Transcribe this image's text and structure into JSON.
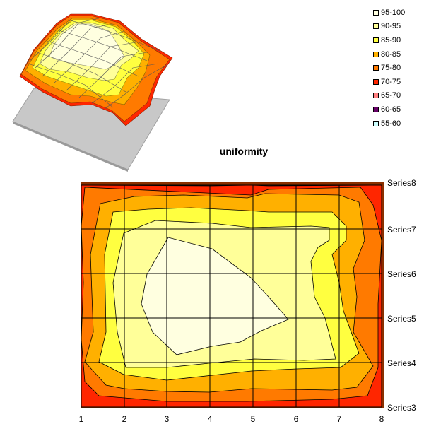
{
  "chart_data": {
    "type": "contour",
    "title": "uniformity",
    "x_ticks": [
      "1",
      "2",
      "3",
      "4",
      "5",
      "6",
      "7",
      "8"
    ],
    "y_ticks": [
      "Series3",
      "Series4",
      "Series5",
      "Series6",
      "Series7",
      "Series8"
    ],
    "legend_position": "top-right",
    "grid": true,
    "bands": [
      {
        "range": "95-100",
        "color": "#ffffe0"
      },
      {
        "range": "90-95",
        "color": "#ffff99"
      },
      {
        "range": "85-90",
        "color": "#ffff40"
      },
      {
        "range": "80-85",
        "color": "#ffb000"
      },
      {
        "range": "75-80",
        "color": "#ff7a00"
      },
      {
        "range": "70-75",
        "color": "#ff2600"
      },
      {
        "range": "65-70",
        "color": "#ff8080"
      },
      {
        "range": "60-65",
        "color": "#660066"
      },
      {
        "range": "55-60",
        "color": "#ccffff"
      }
    ],
    "surface_thumbnail": true
  }
}
